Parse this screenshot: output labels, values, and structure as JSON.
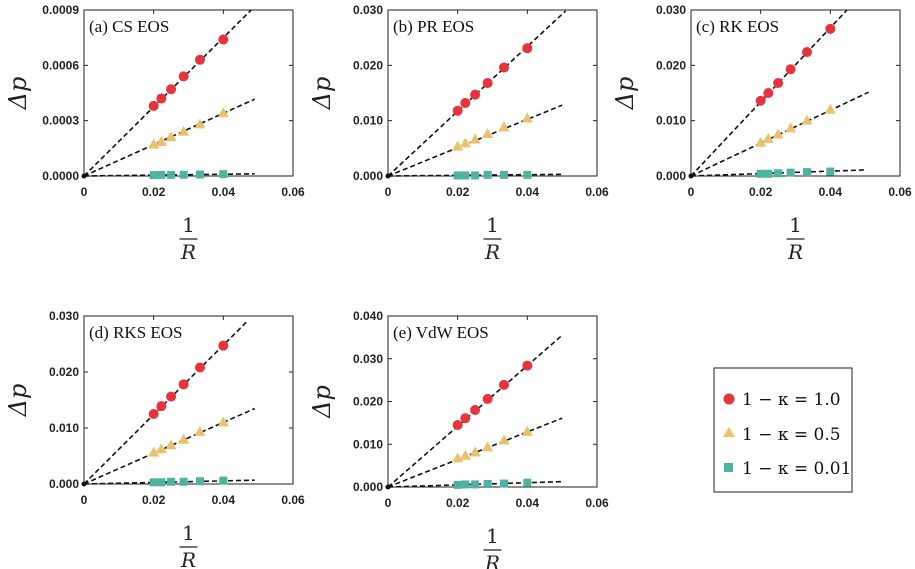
{
  "legend": {
    "entries": [
      {
        "label": "1 − κ = 1.0",
        "color": "#e8323c",
        "marker": "circle"
      },
      {
        "label": "1 − κ = 0.5",
        "color": "#edc06b",
        "marker": "triangle"
      },
      {
        "label": "1 − κ = 0.01",
        "color": "#4fb3a2",
        "marker": "square"
      }
    ]
  },
  "chart_data": [
    {
      "type": "scatter",
      "title": "(a) CS EOS",
      "ylabel": "Δp",
      "xlabel": "1/R",
      "xlim": [
        0,
        0.06
      ],
      "ylim": [
        0,
        0.0009
      ],
      "xticks": [
        "0",
        "0.02",
        "0.04",
        "0.06"
      ],
      "xtick_values": [
        0,
        0.02,
        0.04,
        0.06
      ],
      "yticks": [
        "0.0000",
        "0.0003",
        "0.0006",
        "0.0009"
      ],
      "ytick_values": [
        0,
        0.0003,
        0.0006,
        0.0009
      ],
      "x": [
        0.02,
        0.0222,
        0.025,
        0.0286,
        0.0333,
        0.04
      ],
      "series": [
        {
          "values": [
            0.00038,
            0.00042,
            0.00047,
            0.00054,
            0.00063,
            0.00074
          ],
          "slope": 0.01875,
          "fit_xmax": 0.049,
          "color": "#e8323c",
          "marker": "circle"
        },
        {
          "values": [
            0.00017,
            0.000185,
            0.00021,
            0.00024,
            0.00028,
            0.00034
          ],
          "slope": 0.0085,
          "fit_xmax": 0.049,
          "color": "#edc06b",
          "marker": "triangle"
        },
        {
          "values": [
            5e-06,
            6e-06,
            6e-06,
            7e-06,
            8e-06,
            1e-05
          ],
          "slope": 0.00024,
          "fit_xmax": 0.049,
          "color": "#4fb3a2",
          "marker": "square"
        }
      ]
    },
    {
      "type": "scatter",
      "title": "(b) PR EOS",
      "ylabel": "Δp",
      "xlabel": "1/R",
      "xlim": [
        0,
        0.06
      ],
      "ylim": [
        0,
        0.03
      ],
      "xticks": [
        "0",
        "0.02",
        "0.04",
        "0.06"
      ],
      "xtick_values": [
        0,
        0.02,
        0.04,
        0.06
      ],
      "yticks": [
        "0.000",
        "0.010",
        "0.020",
        "0.030"
      ],
      "ytick_values": [
        0,
        0.01,
        0.02,
        0.03
      ],
      "x": [
        0.02,
        0.0222,
        0.025,
        0.0286,
        0.0333,
        0.04
      ],
      "series": [
        {
          "values": [
            0.0118,
            0.0132,
            0.0147,
            0.0168,
            0.0196,
            0.0231
          ],
          "slope": 0.585,
          "fit_xmax": 0.051,
          "color": "#e8323c",
          "marker": "circle"
        },
        {
          "values": [
            0.0053,
            0.0059,
            0.0066,
            0.0076,
            0.0088,
            0.0104
          ],
          "slope": 0.256,
          "fit_xmax": 0.05,
          "color": "#edc06b",
          "marker": "triangle"
        },
        {
          "values": [
            0.0001,
            0.0001,
            0.0001,
            0.0002,
            0.0002,
            0.0002
          ],
          "slope": 0.006,
          "fit_xmax": 0.05,
          "color": "#4fb3a2",
          "marker": "square"
        }
      ]
    },
    {
      "type": "scatter",
      "title": "(c) RK EOS",
      "ylabel": "Δp",
      "xlabel": "1/R",
      "xlim": [
        0,
        0.06
      ],
      "ylim": [
        0,
        0.03
      ],
      "xticks": [
        "0",
        "0.02",
        "0.04",
        "0.06"
      ],
      "xtick_values": [
        0,
        0.02,
        0.04,
        0.06
      ],
      "yticks": [
        "0.000",
        "0.010",
        "0.020",
        "0.030"
      ],
      "ytick_values": [
        0,
        0.01,
        0.02,
        0.03
      ],
      "x": [
        0.02,
        0.0222,
        0.025,
        0.0286,
        0.0333,
        0.04
      ],
      "series": [
        {
          "values": [
            0.0136,
            0.015,
            0.0168,
            0.0193,
            0.0224,
            0.0266
          ],
          "slope": 0.67,
          "fit_xmax": 0.045,
          "color": "#e8323c",
          "marker": "circle"
        },
        {
          "values": [
            0.006,
            0.0067,
            0.0075,
            0.0086,
            0.01,
            0.012
          ],
          "slope": 0.297,
          "fit_xmax": 0.051,
          "color": "#edc06b",
          "marker": "triangle"
        },
        {
          "values": [
            0.0004,
            0.0004,
            0.0005,
            0.0006,
            0.0007,
            0.0008
          ],
          "slope": 0.022,
          "fit_xmax": 0.05,
          "color": "#4fb3a2",
          "marker": "square"
        }
      ]
    },
    {
      "type": "scatter",
      "title": "(d) RKS EOS",
      "ylabel": "Δp",
      "xlabel": "1/R",
      "xlim": [
        0,
        0.06
      ],
      "ylim": [
        0,
        0.03
      ],
      "xticks": [
        "0",
        "0.02",
        "0.04",
        "0.06"
      ],
      "xtick_values": [
        0,
        0.02,
        0.04,
        0.06
      ],
      "yticks": [
        "0.000",
        "0.010",
        "0.020",
        "0.030"
      ],
      "ytick_values": [
        0,
        0.01,
        0.02,
        0.03
      ],
      "x": [
        0.02,
        0.0222,
        0.025,
        0.0286,
        0.0333,
        0.04
      ],
      "series": [
        {
          "values": [
            0.0125,
            0.0139,
            0.0156,
            0.0178,
            0.0208,
            0.0247
          ],
          "slope": 0.62,
          "fit_xmax": 0.047,
          "color": "#e8323c",
          "marker": "circle"
        },
        {
          "values": [
            0.0056,
            0.0062,
            0.0069,
            0.0079,
            0.0093,
            0.011
          ],
          "slope": 0.275,
          "fit_xmax": 0.049,
          "color": "#edc06b",
          "marker": "triangle"
        },
        {
          "values": [
            0.0003,
            0.0003,
            0.0004,
            0.0004,
            0.0005,
            0.0006
          ],
          "slope": 0.014,
          "fit_xmax": 0.049,
          "color": "#4fb3a2",
          "marker": "square"
        }
      ]
    },
    {
      "type": "scatter",
      "title": "(e) VdW EOS",
      "ylabel": "Δp",
      "xlabel": "1/R",
      "xlim": [
        0,
        0.06
      ],
      "ylim": [
        0,
        0.04
      ],
      "xticks": [
        "0",
        "0.02",
        "0.04",
        "0.06"
      ],
      "xtick_values": [
        0,
        0.02,
        0.04,
        0.06
      ],
      "yticks": [
        "0.000",
        "0.010",
        "0.020",
        "0.030",
        "0.040"
      ],
      "ytick_values": [
        0,
        0.01,
        0.02,
        0.03,
        0.04
      ],
      "x": [
        0.02,
        0.0222,
        0.025,
        0.0286,
        0.0333,
        0.04
      ],
      "series": [
        {
          "values": [
            0.0145,
            0.0161,
            0.018,
            0.0206,
            0.0239,
            0.0284
          ],
          "slope": 0.71,
          "fit_xmax": 0.05,
          "color": "#e8323c",
          "marker": "circle"
        },
        {
          "values": [
            0.0067,
            0.0073,
            0.0081,
            0.0093,
            0.0109,
            0.0129
          ],
          "slope": 0.322,
          "fit_xmax": 0.05,
          "color": "#edc06b",
          "marker": "triangle"
        },
        {
          "values": [
            0.0005,
            0.0006,
            0.0006,
            0.0007,
            0.0008,
            0.001
          ],
          "slope": 0.025,
          "fit_xmax": 0.05,
          "color": "#4fb3a2",
          "marker": "square"
        }
      ]
    }
  ]
}
